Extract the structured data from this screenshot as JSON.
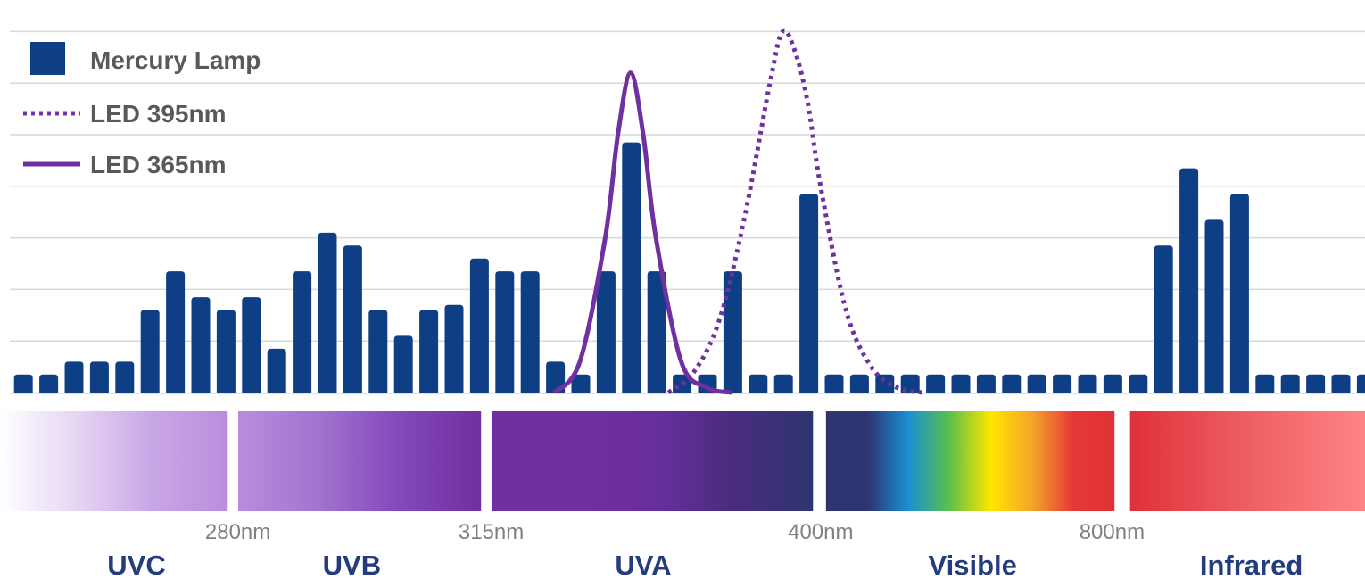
{
  "chart_data": {
    "type": "bar",
    "title": "",
    "xlabel": "",
    "ylabel": "",
    "ylim": [
      0,
      7
    ],
    "gridlines": [
      1,
      2,
      3,
      4,
      5,
      6,
      7
    ],
    "legend": {
      "placement": "top-left",
      "entries": [
        {
          "label": "Mercury Lamp",
          "style": "square",
          "color": "#0e3f84"
        },
        {
          "label": "LED 395nm",
          "style": "dotted-line",
          "color": "#7030a0"
        },
        {
          "label": "LED 365nm",
          "style": "solid-line",
          "color": "#7030a0"
        }
      ]
    },
    "series": [
      {
        "name": "Mercury Lamp",
        "type": "bar",
        "color": "#0e3f84",
        "values": [
          0.35,
          0.35,
          0.6,
          0.6,
          0.6,
          1.6,
          2.35,
          1.85,
          1.6,
          1.85,
          0.85,
          2.35,
          3.1,
          2.85,
          1.6,
          1.1,
          1.6,
          1.7,
          2.6,
          2.35,
          2.35,
          0.6,
          0.35,
          2.35,
          4.85,
          2.35,
          0.35,
          0.35,
          2.35,
          0.35,
          0.35,
          3.85,
          0.35,
          0.35,
          0.35,
          0.35,
          0.35,
          0.35,
          0.35,
          0.35,
          0.35,
          0.35,
          0.35,
          0.35,
          0.35,
          2.85,
          4.35,
          3.35,
          3.85,
          0.35,
          0.35,
          0.35,
          0.35,
          0.35,
          0.35
        ]
      },
      {
        "name": "LED 365nm",
        "type": "line",
        "style": "solid",
        "color": "#7030a0",
        "x": [
          21.5,
          22.5,
          23.5,
          24.0,
          24.5,
          25.0,
          25.5,
          26.5,
          27.5,
          28.5
        ],
        "y": [
          0.0,
          0.6,
          3.0,
          5.0,
          6.2,
          5.0,
          3.0,
          0.6,
          0.1,
          0.0
        ]
      },
      {
        "name": "LED 395nm",
        "type": "line",
        "style": "dotted",
        "color": "#7030a0",
        "x": [
          26.0,
          27.0,
          28.0,
          29.0,
          30.0,
          30.5,
          31.0,
          31.5,
          32.0,
          33.0,
          34.0,
          35.0,
          36.0
        ],
        "y": [
          0.0,
          0.4,
          1.4,
          3.4,
          6.0,
          7.0,
          6.6,
          5.6,
          4.0,
          1.6,
          0.5,
          0.1,
          0.0
        ]
      }
    ],
    "ticks": [
      {
        "label": "280nm",
        "at": 9.0
      },
      {
        "label": "315nm",
        "at": 19.0
      },
      {
        "label": "400nm",
        "at": 32.0
      },
      {
        "label": "800nm",
        "at": 43.5
      }
    ],
    "bands": [
      {
        "name": "",
        "from": 0.0,
        "to": 8.6,
        "colors": [
          "#ffffff",
          "#e6d6f3",
          "#c9a6e6",
          "#b98ddd"
        ]
      },
      {
        "name": "",
        "from": 9.4,
        "to": 18.6,
        "colors": [
          "#b98ddd",
          "#a273cf",
          "#8448ba",
          "#7030a0"
        ]
      },
      {
        "name": "",
        "from": 19.4,
        "to": 31.7,
        "colors": [
          "#7030a0",
          "#7030a0",
          "#6a2e9e",
          "#4a2c7e",
          "#2e3470"
        ]
      },
      {
        "name": "",
        "from": 32.6,
        "to": 43.6,
        "colors": [
          "#2e3470",
          "#2e3470",
          "#1b8fd4",
          "#5cc04a",
          "#ffe600",
          "#f4a52a",
          "#e53838",
          "#e03236"
        ]
      },
      {
        "name": "",
        "from": 44.6,
        "to": 53.6,
        "colors": [
          "#e0303a",
          "#ee5f63",
          "#ff8484"
        ]
      }
    ],
    "band_labels": [
      {
        "label": "UVC",
        "at": 5.0
      },
      {
        "label": "UVB",
        "at": 13.5
      },
      {
        "label": "UVA",
        "at": 25.0
      },
      {
        "label": "Visible",
        "at": 38.0
      },
      {
        "label": "Infrared",
        "at": 49.0
      }
    ]
  }
}
